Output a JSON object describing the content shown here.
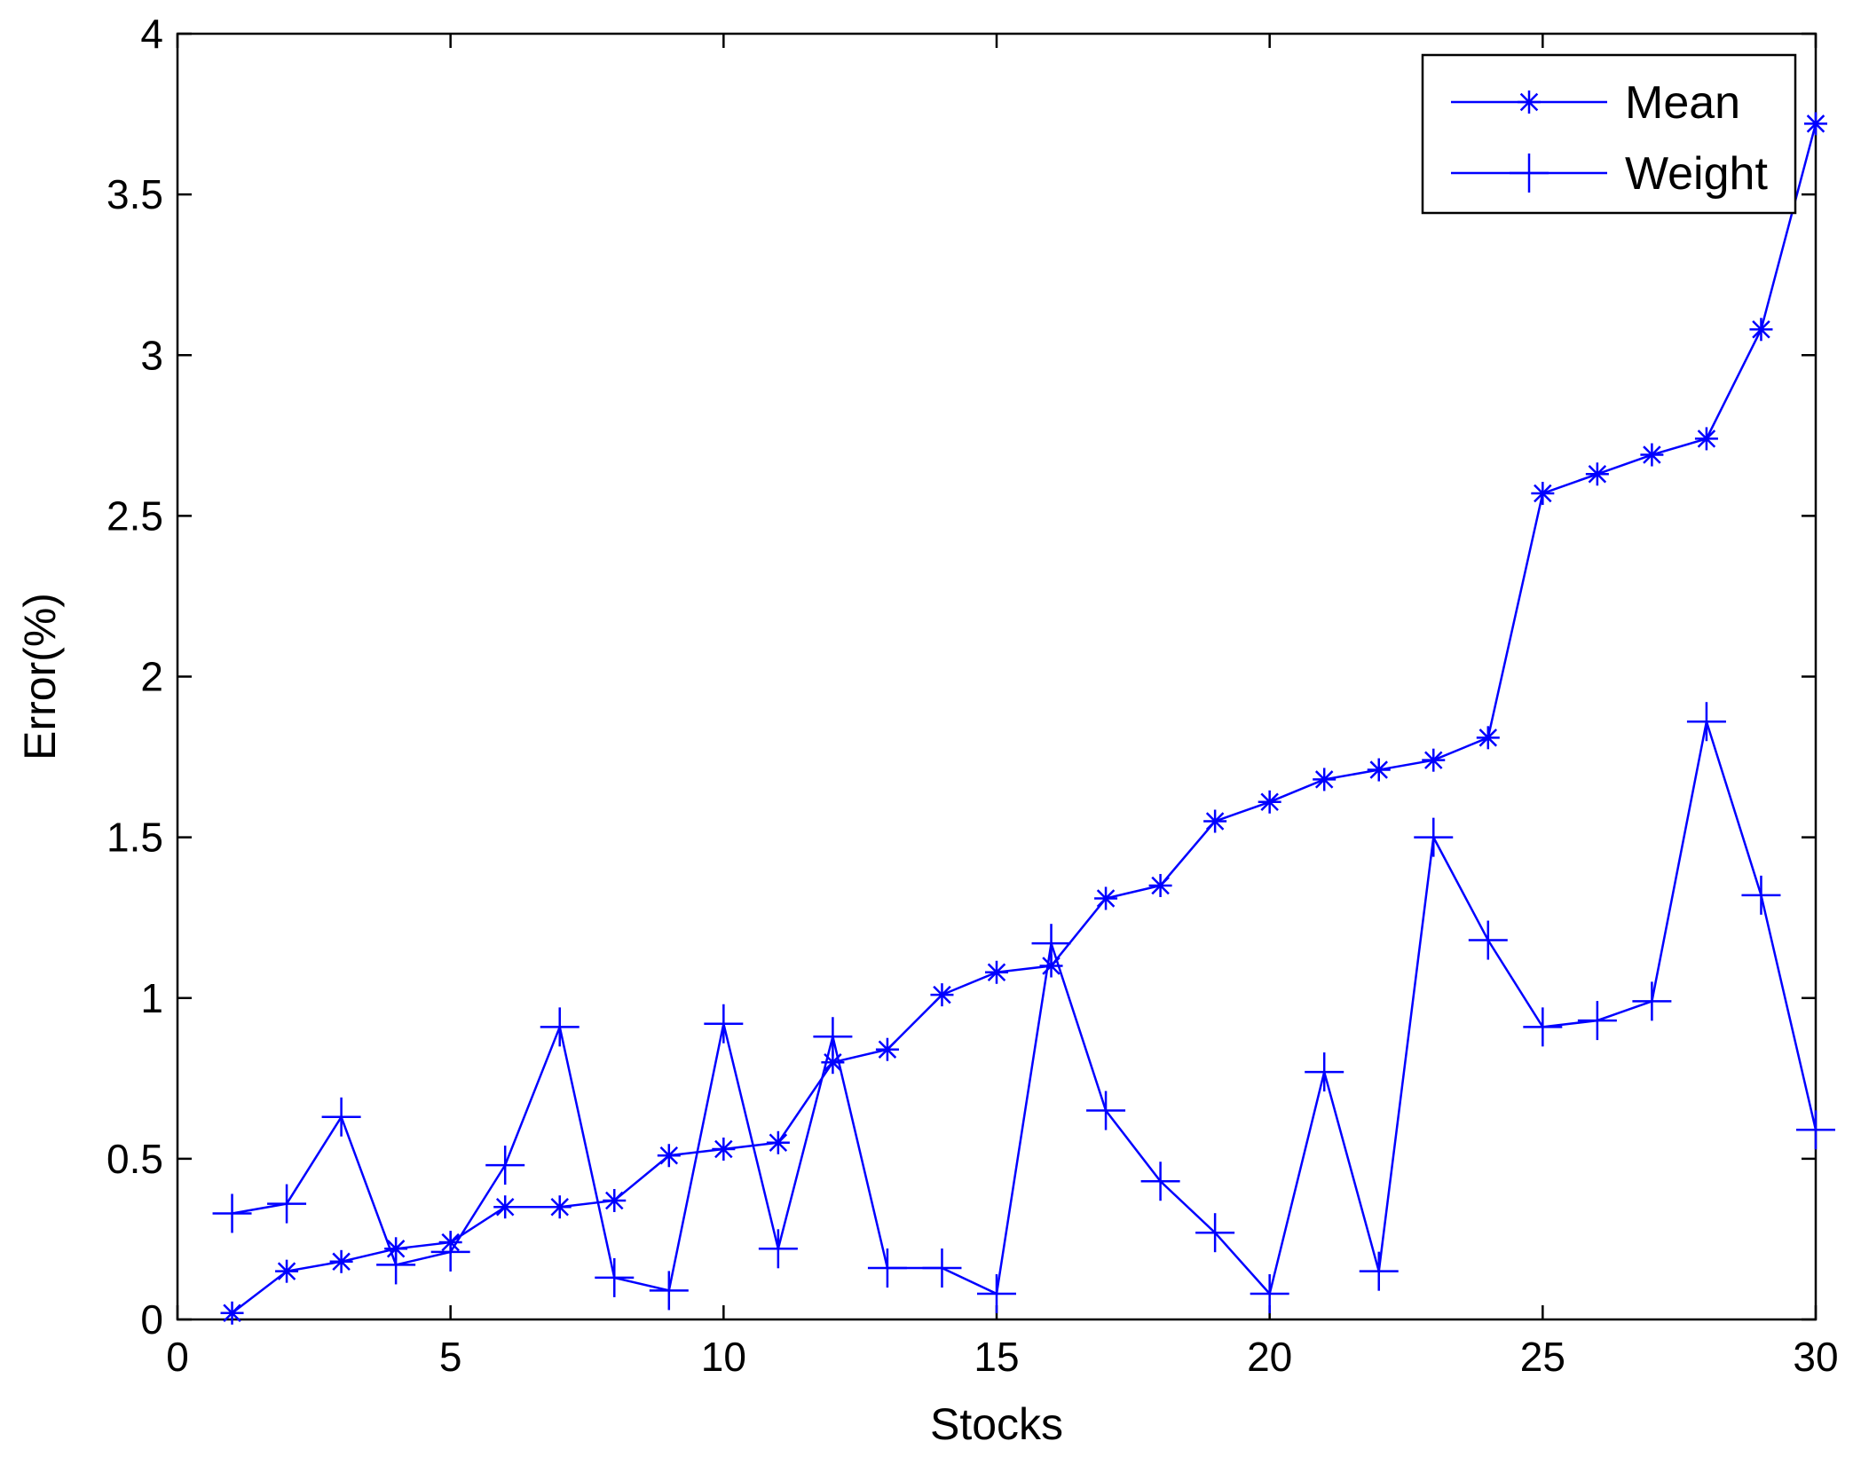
{
  "chart_data": {
    "type": "line",
    "xlabel": "Stocks",
    "ylabel": "Error(%)",
    "xlim": [
      0,
      30
    ],
    "ylim": [
      0,
      4
    ],
    "xticks": [
      0,
      5,
      10,
      15,
      20,
      25,
      30
    ],
    "yticks": [
      0,
      0.5,
      1,
      1.5,
      2,
      2.5,
      3,
      3.5,
      4
    ],
    "xtick_labels": [
      "0",
      "5",
      "10",
      "15",
      "20",
      "25",
      "30"
    ],
    "ytick_labels": [
      "0",
      "0.5",
      "1",
      "1.5",
      "2",
      "2.5",
      "3",
      "3.5",
      "4"
    ],
    "grid": false,
    "legend_position": "top-right",
    "x": [
      1,
      2,
      3,
      4,
      5,
      6,
      7,
      8,
      9,
      10,
      11,
      12,
      13,
      14,
      15,
      16,
      17,
      18,
      19,
      20,
      21,
      22,
      23,
      24,
      25,
      26,
      27,
      28,
      29,
      30
    ],
    "series": [
      {
        "name": "Mean",
        "marker": "asterisk",
        "color": "#0000ff",
        "values": [
          0.02,
          0.15,
          0.18,
          0.22,
          0.24,
          0.35,
          0.35,
          0.37,
          0.51,
          0.53,
          0.55,
          0.8,
          0.84,
          1.01,
          1.08,
          1.1,
          1.31,
          1.35,
          1.55,
          1.61,
          1.68,
          1.71,
          1.74,
          1.81,
          2.57,
          2.63,
          2.69,
          2.74,
          3.08,
          3.72
        ]
      },
      {
        "name": "Weight",
        "marker": "plus",
        "color": "#0000ff",
        "values": [
          0.33,
          0.36,
          0.63,
          0.17,
          0.21,
          0.48,
          0.91,
          0.13,
          0.09,
          0.92,
          0.22,
          0.88,
          0.16,
          0.16,
          0.08,
          1.17,
          0.65,
          0.43,
          0.27,
          0.08,
          0.77,
          0.15,
          1.5,
          1.18,
          0.91,
          0.93,
          0.99,
          1.86,
          1.32,
          0.59
        ]
      }
    ]
  }
}
